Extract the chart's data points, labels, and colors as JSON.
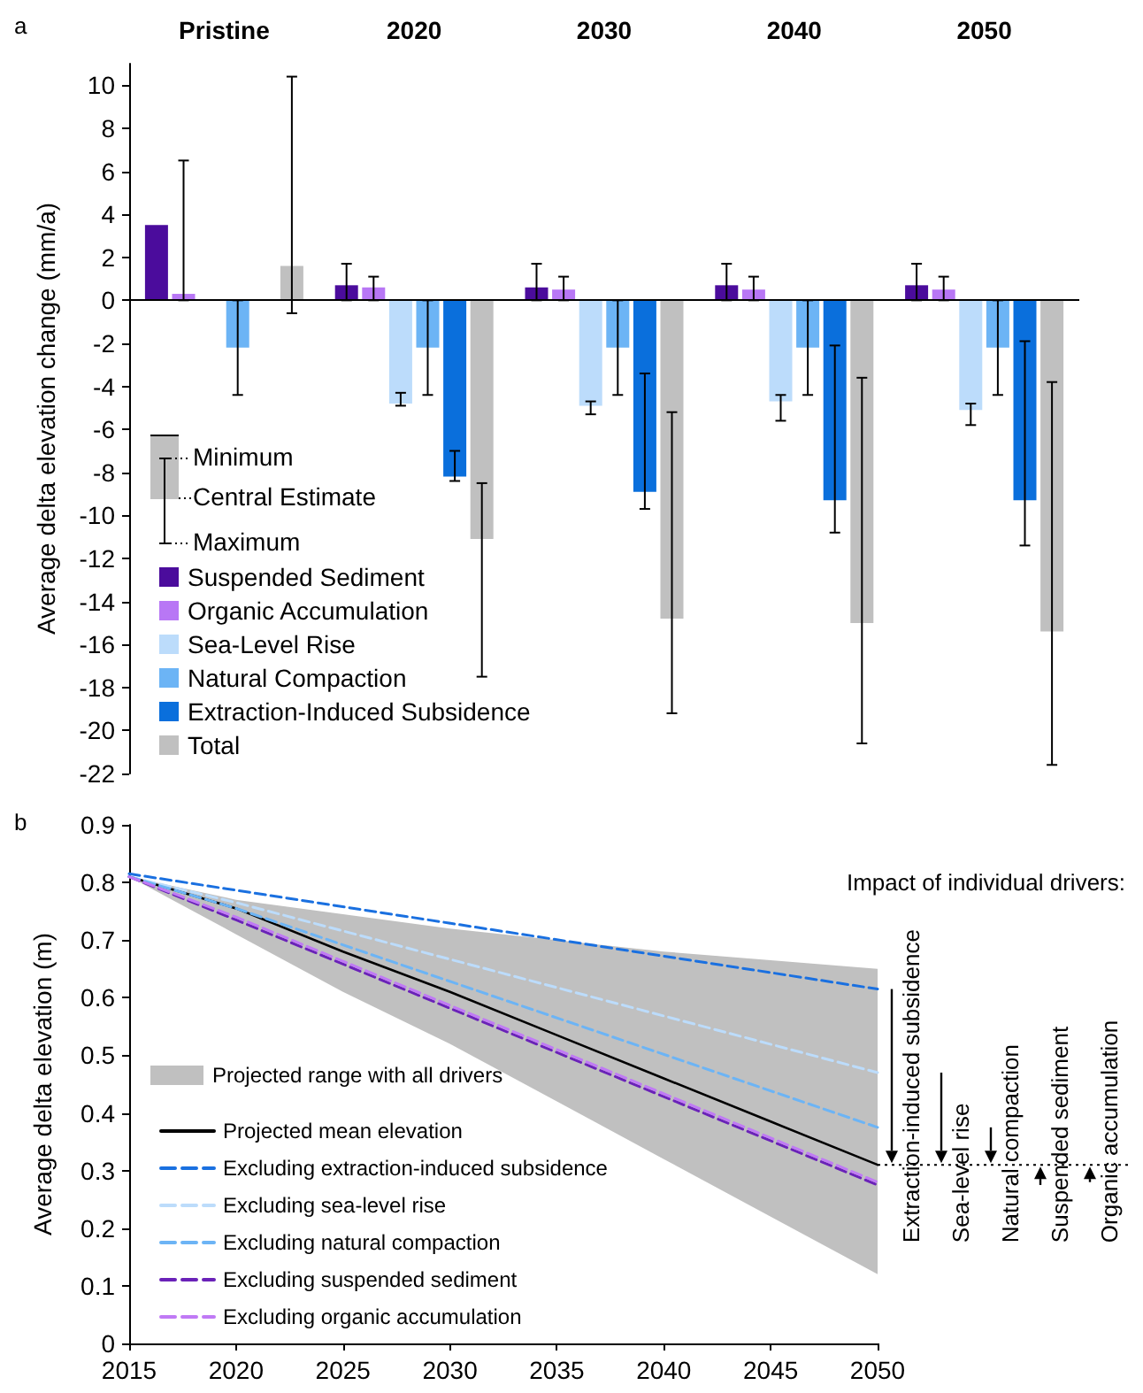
{
  "chart_data": [
    {
      "type": "bar",
      "ylabel": "Average delta elevation change (mm/a)",
      "categories": [
        "Pristine",
        "2020",
        "2030",
        "2040",
        "2050"
      ],
      "series": [
        {
          "name": "Suspended Sediment",
          "color": "#4b0c9c",
          "values": [
            3.5,
            0.7,
            0.6,
            0.7,
            0.7
          ],
          "errors": [
            null,
            [
              0,
              1.7
            ],
            [
              0,
              1.7
            ],
            [
              0,
              1.7
            ],
            [
              0,
              1.7
            ]
          ]
        },
        {
          "name": "Organic Accumulation",
          "color": "#b877f5",
          "values": [
            0.3,
            0.6,
            0.5,
            0.5,
            0.5
          ],
          "errors": [
            [
              0,
              6.5
            ],
            [
              0,
              1.1
            ],
            [
              0,
              1.1
            ],
            [
              0,
              1.1
            ],
            [
              0,
              1.1
            ]
          ]
        },
        {
          "name": "Sea-Level Rise",
          "color": "#bcdcfb",
          "values": [
            null,
            -4.8,
            -4.9,
            -4.7,
            -5.1
          ],
          "errors": [
            null,
            [
              -4.9,
              -4.3
            ],
            [
              -5.3,
              -4.7
            ],
            [
              -5.6,
              -4.4
            ],
            [
              -5.8,
              -4.8
            ]
          ]
        },
        {
          "name": "Natural Compaction",
          "color": "#6cb4f5",
          "values": [
            -2.2,
            -2.2,
            -2.2,
            -2.2,
            -2.2
          ],
          "errors": [
            [
              -4.4,
              0
            ],
            [
              -4.4,
              0
            ],
            [
              -4.4,
              0
            ],
            [
              -4.4,
              0
            ],
            [
              -4.4,
              0
            ]
          ]
        },
        {
          "name": "Extraction-Induced Subsidence",
          "color": "#0a6fdc",
          "values": [
            null,
            -8.2,
            -8.9,
            -9.3,
            -9.3
          ],
          "errors": [
            null,
            [
              -8.4,
              -7.0
            ],
            [
              -9.7,
              -3.4
            ],
            [
              -10.8,
              -2.1
            ],
            [
              -11.4,
              -1.9
            ]
          ]
        },
        {
          "name": "Total",
          "color": "#c0c0c0",
          "values": [
            1.6,
            -11.1,
            -14.8,
            -15.0,
            -15.4
          ],
          "errors": [
            [
              -0.6,
              10.4
            ],
            [
              -17.5,
              -8.5
            ],
            [
              -19.2,
              -5.2
            ],
            [
              -20.6,
              -3.6
            ],
            [
              -21.6,
              -3.8
            ]
          ]
        }
      ],
      "ylim": [
        -22,
        11
      ],
      "yticks": [
        -22,
        -20,
        -18,
        -16,
        -14,
        -12,
        -10,
        -8,
        -6,
        -4,
        -2,
        0,
        2,
        4,
        6,
        8,
        10
      ],
      "ref_lines": [
        {
          "axis": "y",
          "value": 0
        }
      ],
      "legend": "bottom left",
      "grid": false,
      "annotations": [
        "a",
        "Minimum",
        "Central Estimate",
        "Maximum"
      ]
    },
    {
      "type": "line",
      "xlabel": null,
      "ylabel": "Average delta elevation (m)",
      "series": [
        {
          "name": "Projected mean elevation",
          "color": "#000000",
          "line_style": "solid",
          "x": [
            2015,
            2020,
            2025,
            2030,
            2035,
            2040,
            2045,
            2050
          ],
          "values": [
            0.81,
            0.755,
            0.68,
            0.61,
            0.535,
            0.46,
            0.385,
            0.31
          ],
          "lower": [
            0.81,
            0.71,
            0.61,
            0.52,
            0.42,
            0.32,
            0.22,
            0.12
          ],
          "upper": [
            0.81,
            0.77,
            0.745,
            0.72,
            0.7,
            0.68,
            0.665,
            0.65
          ]
        },
        {
          "name": "Excluding extraction-induced subsidence",
          "color": "#1a70e0",
          "line_style": "dashed",
          "x": [
            2015,
            2050
          ],
          "values": [
            0.815,
            0.615
          ]
        },
        {
          "name": "Excluding sea-level rise",
          "color": "#bcdcfb",
          "line_style": "dashed",
          "x": [
            2015,
            2020,
            2050
          ],
          "values": [
            0.81,
            0.765,
            0.47
          ]
        },
        {
          "name": "Excluding natural compaction",
          "color": "#6cb4f5",
          "line_style": "dashed",
          "x": [
            2015,
            2020,
            2050
          ],
          "values": [
            0.81,
            0.755,
            0.375
          ]
        },
        {
          "name": "Excluding suspended sediment",
          "color": "#6a22b8",
          "line_style": "dashed",
          "x": [
            2015,
            2020,
            2050
          ],
          "values": [
            0.81,
            0.735,
            0.275
          ]
        },
        {
          "name": "Excluding organic accumulation",
          "color": "#c07af5",
          "line_style": "dashed",
          "x": [
            2015,
            2020,
            2050
          ],
          "values": [
            0.81,
            0.74,
            0.28
          ]
        }
      ],
      "xlim": [
        2015,
        2050
      ],
      "xticks": [
        2015,
        2020,
        2025,
        2030,
        2035,
        2040,
        2045,
        2050
      ],
      "ylim": [
        0,
        0.9
      ],
      "yticks": [
        0,
        0.1,
        0.2,
        0.3,
        0.4,
        0.5,
        0.6,
        0.7,
        0.8,
        0.9
      ],
      "legend": "bottom left",
      "grid": false,
      "annotations": [
        "b",
        "Impact of individual drivers:",
        "Projected range with all drivers",
        "Extraction-induced subsidence",
        "Sea-level rise",
        "Natural compaction",
        "Suspended sediment",
        "Organic accumulation"
      ]
    }
  ]
}
